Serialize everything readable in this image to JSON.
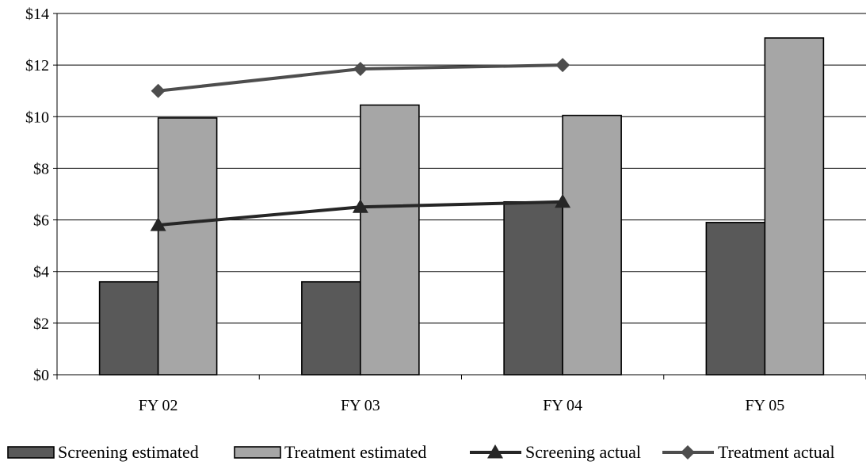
{
  "chart_data": {
    "type": "bar",
    "categories": [
      "FY 02",
      "FY 03",
      "FY 04",
      "FY 05"
    ],
    "ylim": [
      0,
      14
    ],
    "y_ticks": [
      0,
      2,
      4,
      6,
      8,
      10,
      12,
      14
    ],
    "y_tick_labels": [
      "$0",
      "$2",
      "$4",
      "$6",
      "$8",
      "$10",
      "$12",
      "$14"
    ],
    "grid": true,
    "legend_position": "bottom",
    "title": "",
    "xlabel": "",
    "ylabel": "",
    "series": [
      {
        "name": "Screening estimated",
        "kind": "bar",
        "values": [
          3.6,
          3.6,
          6.7,
          5.9
        ],
        "color": "#595959"
      },
      {
        "name": "Treatment estimated",
        "kind": "bar",
        "values": [
          9.95,
          10.45,
          10.05,
          13.05
        ],
        "color": "#a6a6a6"
      },
      {
        "name": "Screening actual",
        "kind": "line",
        "marker": "triangle",
        "values": [
          5.8,
          6.5,
          6.7,
          null
        ],
        "color": "#262626"
      },
      {
        "name": "Treatment actual",
        "kind": "line",
        "marker": "diamond",
        "values": [
          11.0,
          11.85,
          12.0,
          null
        ],
        "color": "#4d4d4d"
      }
    ]
  }
}
